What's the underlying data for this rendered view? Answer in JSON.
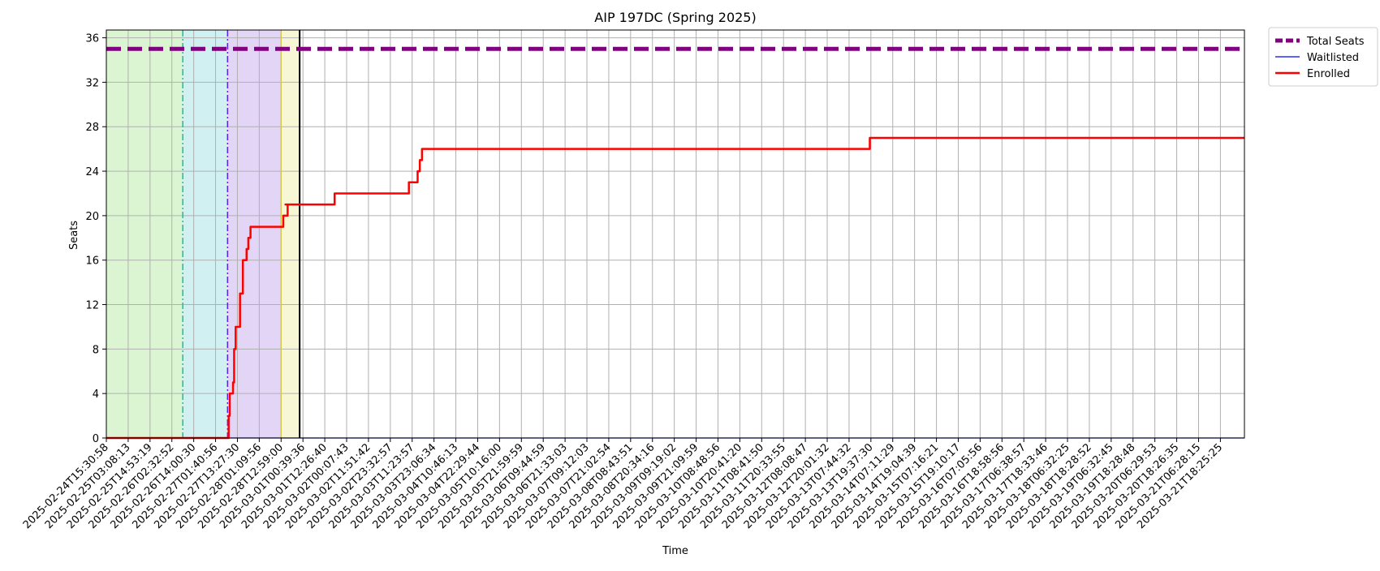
{
  "chart_data": {
    "type": "line",
    "title": "AIP 197DC (Spring 2025)",
    "xlabel": "Time",
    "ylabel": "Seats",
    "ylim": [
      0,
      36.7
    ],
    "grid": true,
    "legend_position": "outside-top-right",
    "x_tick_labels": [
      "2025-02-24T15:30:58",
      "2025-02-25T03:08:13",
      "2025-02-25T14:53:19",
      "2025-02-26T02:32:52",
      "2025-02-26T14:00:30",
      "2025-02-27T01:40:56",
      "2025-02-27T13:27:30",
      "2025-02-28T01:09:56",
      "2025-02-28T12:59:00",
      "2025-03-01T00:39:36",
      "2025-03-01T12:26:40",
      "2025-03-02T00:07:43",
      "2025-03-02T11:51:42",
      "2025-03-02T23:32:57",
      "2025-03-03T11:23:57",
      "2025-03-03T23:06:34",
      "2025-03-04T10:46:13",
      "2025-03-04T22:29:44",
      "2025-03-05T10:16:00",
      "2025-03-05T21:59:59",
      "2025-03-06T09:44:59",
      "2025-03-06T21:33:03",
      "2025-03-07T09:12:03",
      "2025-03-07T21:02:54",
      "2025-03-08T08:43:51",
      "2025-03-08T20:34:16",
      "2025-03-09T09:19:02",
      "2025-03-09T21:09:59",
      "2025-03-10T08:48:56",
      "2025-03-10T20:41:20",
      "2025-03-11T08:41:50",
      "2025-03-11T20:33:55",
      "2025-03-12T08:08:47",
      "2025-03-12T20:01:32",
      "2025-03-13T07:44:32",
      "2025-03-13T19:37:30",
      "2025-03-14T07:11:29",
      "2025-03-14T19:04:39",
      "2025-03-15T07:16:21",
      "2025-03-15T19:10:17",
      "2025-03-16T07:05:56",
      "2025-03-16T18:58:56",
      "2025-03-17T06:38:57",
      "2025-03-17T18:33:46",
      "2025-03-18T06:32:25",
      "2025-03-18T18:28:52",
      "2025-03-19T06:32:45",
      "2025-03-19T18:28:48",
      "2025-03-20T06:29:53",
      "2025-03-20T18:26:35",
      "2025-03-21T06:28:15",
      "2025-03-21T18:25:25"
    ],
    "y_ticks": [
      0,
      4,
      8,
      12,
      16,
      20,
      24,
      28,
      32,
      36
    ],
    "x_range_index": [
      0,
      52.1
    ],
    "shaded_periods": [
      {
        "start": 0,
        "end": 3.5,
        "color": "#dbf5d3"
      },
      {
        "start": 3.5,
        "end": 5.55,
        "color": "#d1f0f1"
      },
      {
        "start": 5.55,
        "end": 8.0,
        "color": "#e2d5f5"
      },
      {
        "start": 8.0,
        "end": 8.85,
        "color": "#f7f7d6"
      }
    ],
    "vertical_markers": [
      {
        "x": 3.5,
        "color": "#1abc9c",
        "style": "dashdot"
      },
      {
        "x": 5.55,
        "color": "#5b21e0",
        "style": "dashdot"
      },
      {
        "x": 8.0,
        "color": "#d4c84e",
        "style": "solid"
      },
      {
        "x": 8.85,
        "color": "#000000",
        "style": "solid"
      }
    ],
    "series": [
      {
        "name": "Total Seats",
        "color": "#800080",
        "style": "dashed",
        "x": [
          0,
          52.1
        ],
        "y": [
          35,
          35
        ]
      },
      {
        "name": "Waitlisted",
        "color": "#0000ff",
        "style": "solid",
        "x": [
          0,
          52.1
        ],
        "y": [
          0,
          0
        ]
      },
      {
        "name": "Enrolled",
        "color": "#ff0000",
        "style": "step",
        "x": [
          0,
          5.55,
          5.6,
          5.65,
          5.75,
          5.8,
          5.85,
          5.92,
          6.0,
          6.12,
          6.25,
          6.35,
          6.42,
          6.5,
          6.55,
          6.6,
          6.7,
          7.15,
          7.2,
          7.3,
          7.3,
          7.35,
          7.45,
          7.5,
          7.6,
          7.8,
          7.95,
          8.0,
          8.1,
          8.15,
          8.3,
          8.2,
          8.9,
          10.4,
          10.45,
          13.8,
          13.85,
          14.2,
          14.25,
          14.3,
          14.35,
          14.4,
          14.45,
          14.5,
          14.55,
          14.6,
          34.9,
          34.95,
          52.1
        ],
        "y": [
          0,
          0,
          2,
          4,
          4,
          5,
          8,
          10,
          10,
          13,
          16,
          16,
          17,
          18,
          18,
          19,
          19,
          19,
          19,
          19,
          19,
          19,
          19,
          19,
          19,
          19,
          19,
          19,
          20,
          20,
          21,
          21,
          21,
          21,
          22,
          22,
          23,
          23,
          24,
          24,
          25,
          25,
          26,
          26,
          26,
          26,
          26,
          27,
          27
        ]
      }
    ]
  }
}
